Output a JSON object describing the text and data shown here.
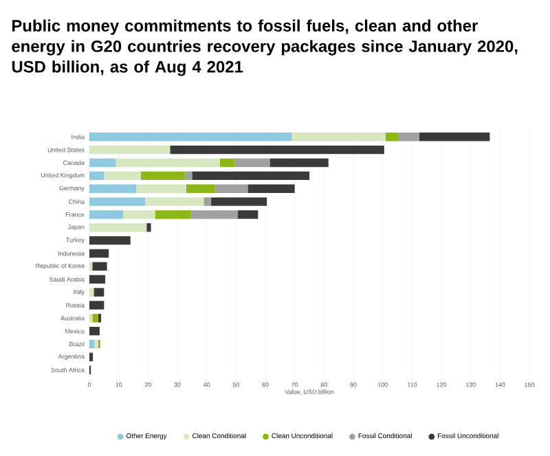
{
  "chart_data": {
    "type": "bar",
    "orientation": "horizontal",
    "stacked": true,
    "title": "Public money commitments to fossil fuels, clean and other energy in G20 countries recovery packages since January 2020, USD billion, as of Aug 4 2021",
    "xlabel": "Value, USD billion",
    "categories": [
      "India",
      "United States",
      "Canada",
      "United Kingdom",
      "Germany",
      "China",
      "France",
      "Japan",
      "Turkey",
      "Indonesia",
      "Republic of Korea",
      "Saudi Arabia",
      "Italy",
      "Russia",
      "Australia",
      "Mexico",
      "Brazil",
      "Argentina",
      "South Africa"
    ],
    "series": [
      {
        "name": "Other Energy",
        "color": "#8ec9e0",
        "values": [
          69,
          null,
          9,
          5,
          16,
          19,
          11.5,
          null,
          null,
          null,
          null,
          null,
          null,
          null,
          null,
          null,
          1.8,
          null,
          null
        ]
      },
      {
        "name": "Clean Conditional",
        "color": "#d7e8c0",
        "values": [
          32,
          27.5,
          35.5,
          12.5,
          17,
          20,
          11,
          19.5,
          null,
          null,
          1,
          null,
          1.5,
          null,
          1,
          null,
          1.2,
          null,
          null
        ]
      },
      {
        "name": "Clean Unconditional",
        "color": "#8bb817",
        "values": [
          4.5,
          null,
          5,
          15,
          10,
          null,
          12,
          null,
          null,
          null,
          null,
          null,
          null,
          null,
          2,
          null,
          0.7,
          null,
          null
        ]
      },
      {
        "name": "Fossil Conditional",
        "color": "#a0a0a0",
        "values": [
          7,
          null,
          12,
          2.5,
          11,
          2.5,
          16,
          null,
          null,
          null,
          null,
          null,
          null,
          null,
          null,
          null,
          null,
          null,
          null
        ]
      },
      {
        "name": "Fossil Unconditional",
        "color": "#3a3a3a",
        "values": [
          24,
          73,
          20,
          40,
          16,
          19,
          7,
          1.5,
          14,
          6.6,
          5,
          5.4,
          3.5,
          5,
          1,
          3.5,
          null,
          1.2,
          0.5
        ]
      }
    ],
    "xlim": [
      0,
      150
    ],
    "xticks": [
      0,
      10,
      20,
      30,
      40,
      50,
      60,
      70,
      80,
      90,
      100,
      110,
      120,
      130,
      140,
      150
    ],
    "grid": "x",
    "legend": "bottom"
  }
}
